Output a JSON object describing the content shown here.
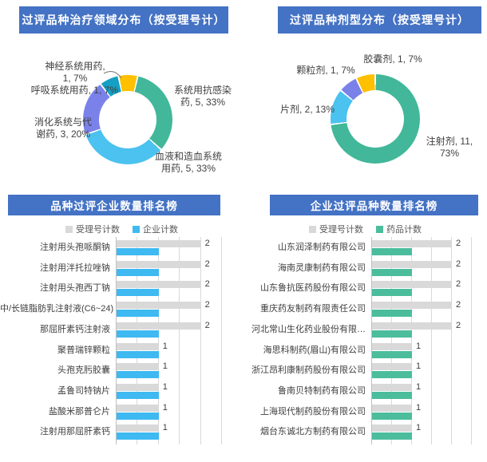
{
  "chart_data": [
    {
      "id": "therapy-donut",
      "type": "pie",
      "subtype": "donut",
      "title": "过评品种治疗领域分布（按受理号计）",
      "start_deg": 13,
      "legend_position": "none",
      "slices": [
        {
          "label": "系统用抗感染药",
          "value": 5,
          "pct": 33,
          "color": "#42B79A",
          "callout": [
            "系统用抗感染",
            "药, 5, 33%"
          ]
        },
        {
          "label": "血液和造血系统用药",
          "value": 5,
          "pct": 33,
          "color": "#4BC2EF",
          "callout": [
            "血液和造血系统",
            "用药, 5, 33%"
          ]
        },
        {
          "label": "消化系统与代谢药",
          "value": 3,
          "pct": 20,
          "color": "#7A82E9",
          "callout": [
            "消化系统与代",
            "谢药, 3, 20%"
          ]
        },
        {
          "label": "呼吸系统用药",
          "value": 1,
          "pct": 7,
          "color": "#14A0C4",
          "callout": [
            "呼吸系统用药, 1, 7%"
          ]
        },
        {
          "label": "神经系统用药",
          "value": 1,
          "pct": 7,
          "color": "#FFC000",
          "callout": [
            "神经系统用药,",
            "1, 7%"
          ]
        }
      ]
    },
    {
      "id": "dosage-donut",
      "type": "pie",
      "subtype": "donut",
      "title": "过评品种剂型分布（按受理号计）",
      "start_deg": 0,
      "legend_position": "none",
      "slices": [
        {
          "label": "注射剂",
          "value": 11,
          "pct": 73,
          "color": "#42B79A",
          "callout": [
            "注射剂, 11,",
            "73%"
          ]
        },
        {
          "label": "片剂",
          "value": 2,
          "pct": 13,
          "color": "#4BC2EF",
          "callout": [
            "片剂, 2, 13%"
          ]
        },
        {
          "label": "颗粒剂",
          "value": 1,
          "pct": 7,
          "color": "#7A82E9",
          "callout": [
            "颗粒剂, 1, 7%"
          ]
        },
        {
          "label": "胶囊剂",
          "value": 1,
          "pct": 7,
          "color": "#FFC000",
          "callout": [
            "胶囊剂, 1, 7%"
          ]
        }
      ]
    },
    {
      "id": "product-rank-bars",
      "type": "bar",
      "orientation": "horizontal",
      "title": "品种过评企业数量排名榜",
      "xlim": [
        0,
        2.5
      ],
      "gridline_step": 0.5,
      "grid": true,
      "legend_position": "top",
      "legend": [
        {
          "label": "受理号计数",
          "color": "#D9D9D9"
        },
        {
          "label": "企业计数",
          "color": "#3EB9F1"
        }
      ],
      "categories": [
        "注射用头孢哌酮钠",
        "注射用泮托拉唑钠",
        "注射用头孢西丁钠",
        "中/长链脂肪乳注射液(C6~24)",
        "那屈肝素钙注射液",
        "聚普瑞锌颗粒",
        "头孢克肟胶囊",
        "孟鲁司特钠片",
        "盐酸米那普仑片",
        "注射用那屈肝素钙"
      ],
      "series": [
        {
          "name": "受理号计数",
          "color": "#D9D9D9",
          "values": [
            2,
            2,
            2,
            2,
            2,
            1,
            1,
            1,
            1,
            1
          ]
        },
        {
          "name": "企业计数",
          "color": "#3EB9F1",
          "values": [
            1,
            1,
            1,
            1,
            1,
            1,
            1,
            1,
            1,
            1
          ]
        }
      ],
      "value_labels_series": "受理号计数"
    },
    {
      "id": "company-rank-bars",
      "type": "bar",
      "orientation": "horizontal",
      "title": "企业过评品种数量排名榜",
      "xlim": [
        0,
        2.5
      ],
      "gridline_step": 0.5,
      "grid": true,
      "legend_position": "top",
      "legend": [
        {
          "label": "受理号计数",
          "color": "#D9D9D9"
        },
        {
          "label": "药品计数",
          "color": "#4BBD9C"
        }
      ],
      "categories": [
        "山东润泽制药有限公司",
        "海南灵康制药有限公司",
        "山东鲁抗医药股份有限公司",
        "重庆药友制药有限责任公司",
        "河北常山生化药业股份有限…",
        "海思科制药(眉山)有限公司",
        "浙江昂利康制药股份有限公司",
        "鲁南贝特制药有限公司",
        "上海现代制药股份有限公司",
        "烟台东诚北方制药有限公司"
      ],
      "series": [
        {
          "name": "受理号计数",
          "color": "#D9D9D9",
          "values": [
            2,
            2,
            2,
            2,
            2,
            1,
            1,
            1,
            1,
            1
          ]
        },
        {
          "name": "药品计数",
          "color": "#4BBD9C",
          "values": [
            1,
            1,
            1,
            1,
            1,
            1,
            1,
            1,
            1,
            1
          ]
        }
      ],
      "value_labels_series": "受理号计数"
    }
  ],
  "colors": {
    "banner": "#4472C4",
    "gridline": "#D9D9D9",
    "axis": "#BFBFBF",
    "text": "#404040",
    "legend_text": "#595959"
  }
}
